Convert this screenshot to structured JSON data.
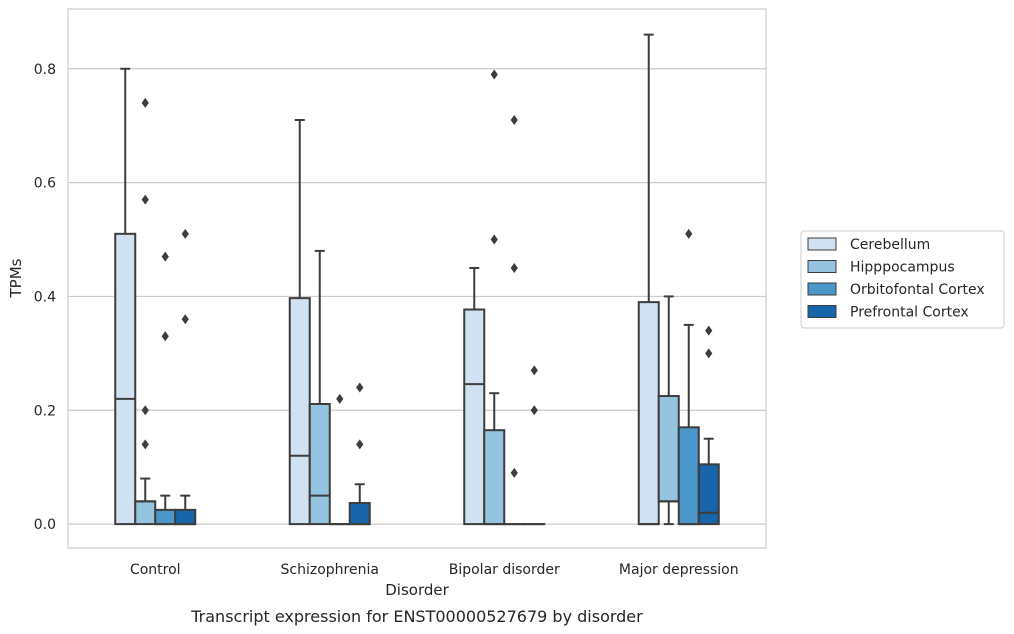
{
  "chart_data": {
    "type": "box",
    "caption": "Transcript expression for ENST00000527679 by disorder",
    "xlabel": "Disorder",
    "ylabel": "TPMs",
    "ylim": [
      -0.042,
      0.905
    ],
    "yticks": [
      0.0,
      0.2,
      0.4,
      0.6,
      0.8
    ],
    "ytick_labels": [
      "0.0",
      "0.2",
      "0.4",
      "0.6",
      "0.8"
    ],
    "grid": "horizontal",
    "legend_placement": "right",
    "categories": [
      "Control",
      "Schizophrenia",
      "Bipolar disorder",
      "Major depression"
    ],
    "series": [
      {
        "name": "Cerebellum",
        "color": "#d0e1f2",
        "boxes": [
          {
            "q1": 0.0,
            "median": 0.22,
            "q3": 0.51,
            "whisker_low": 0.0,
            "whisker_high": 0.8,
            "outliers": []
          },
          {
            "q1": 0.0,
            "median": 0.12,
            "q3": 0.397,
            "whisker_low": 0.0,
            "whisker_high": 0.71,
            "outliers": []
          },
          {
            "q1": 0.0,
            "median": 0.246,
            "q3": 0.377,
            "whisker_low": 0.0,
            "whisker_high": 0.45,
            "outliers": []
          },
          {
            "q1": 0.0,
            "median": 0.0,
            "q3": 0.39,
            "whisker_low": 0.0,
            "whisker_high": 0.86,
            "outliers": []
          }
        ]
      },
      {
        "name": "Hipppocampus",
        "color": "#94c4df",
        "boxes": [
          {
            "q1": 0.0,
            "median": 0.04,
            "q3": 0.04,
            "whisker_low": 0.0,
            "whisker_high": 0.08,
            "outliers": [
              0.74,
              0.57,
              0.2,
              0.14
            ]
          },
          {
            "q1": 0.0,
            "median": 0.05,
            "q3": 0.211,
            "whisker_low": 0.0,
            "whisker_high": 0.48,
            "outliers": []
          },
          {
            "q1": 0.0,
            "median": 0.0,
            "q3": 0.165,
            "whisker_low": 0.0,
            "whisker_high": 0.23,
            "outliers": [
              0.79,
              0.5
            ]
          },
          {
            "q1": 0.04,
            "median": 0.04,
            "q3": 0.225,
            "whisker_low": 0.0,
            "whisker_high": 0.4,
            "outliers": []
          }
        ]
      },
      {
        "name": "Orbitofontal Cortex",
        "color": "#4a98c9",
        "boxes": [
          {
            "q1": 0.0,
            "median": 0.0,
            "q3": 0.025,
            "whisker_low": 0.0,
            "whisker_high": 0.05,
            "outliers": [
              0.47,
              0.33
            ]
          },
          {
            "q1": 0.0,
            "median": 0.0,
            "q3": 0.0,
            "whisker_low": 0.0,
            "whisker_high": 0.0,
            "outliers": [
              0.22
            ]
          },
          {
            "q1": 0.0,
            "median": 0.0,
            "q3": 0.0,
            "whisker_low": 0.0,
            "whisker_high": 0.0,
            "outliers": [
              0.71,
              0.45,
              0.09
            ]
          },
          {
            "q1": 0.0,
            "median": 0.0,
            "q3": 0.17,
            "whisker_low": 0.0,
            "whisker_high": 0.35,
            "outliers": [
              0.51
            ]
          }
        ]
      },
      {
        "name": "Prefrontal Cortex",
        "color": "#1764ab",
        "boxes": [
          {
            "q1": 0.0,
            "median": 0.0,
            "q3": 0.025,
            "whisker_low": 0.0,
            "whisker_high": 0.05,
            "outliers": [
              0.51,
              0.36
            ]
          },
          {
            "q1": 0.0,
            "median": 0.0,
            "q3": 0.037,
            "whisker_low": 0.0,
            "whisker_high": 0.07,
            "outliers": [
              0.24,
              0.14
            ]
          },
          {
            "q1": 0.0,
            "median": 0.0,
            "q3": 0.0,
            "whisker_low": 0.0,
            "whisker_high": 0.0,
            "outliers": [
              0.27,
              0.2
            ]
          },
          {
            "q1": 0.0,
            "median": 0.02,
            "q3": 0.105,
            "whisker_low": 0.0,
            "whisker_high": 0.15,
            "outliers": [
              0.34,
              0.3
            ]
          }
        ]
      }
    ]
  }
}
